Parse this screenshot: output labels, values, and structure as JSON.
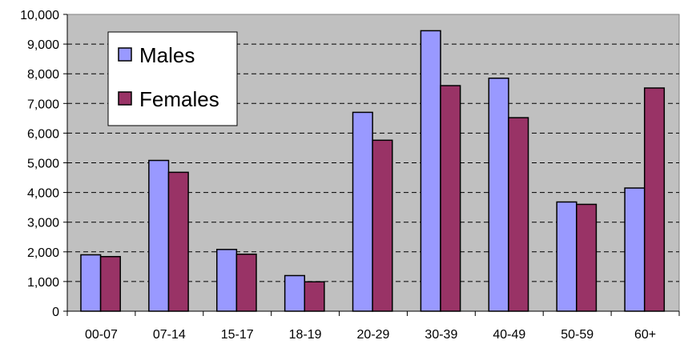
{
  "chart_data": {
    "type": "bar",
    "categories": [
      "00-07",
      "07-14",
      "15-17",
      "18-19",
      "20-29",
      "30-39",
      "40-49",
      "50-59",
      "60+"
    ],
    "series": [
      {
        "name": "Males",
        "color": "#9999ff",
        "values": [
          1900,
          5080,
          2080,
          1200,
          6700,
          9450,
          7850,
          3680,
          4150
        ]
      },
      {
        "name": "Females",
        "color": "#993366",
        "values": [
          1840,
          4680,
          1920,
          990,
          5760,
          7600,
          6520,
          3600,
          7520
        ]
      }
    ],
    "ylim": [
      0,
      10000
    ],
    "yticks": [
      0,
      1000,
      2000,
      3000,
      4000,
      5000,
      6000,
      7000,
      8000,
      9000,
      10000
    ],
    "ytick_labels": [
      "0",
      "1,000",
      "2,000",
      "3,000",
      "4,000",
      "5,000",
      "6,000",
      "7,000",
      "8,000",
      "9,000",
      "10,000"
    ],
    "grid": true,
    "plot_background": "#c0c0c0",
    "legend_position": "top-left"
  }
}
